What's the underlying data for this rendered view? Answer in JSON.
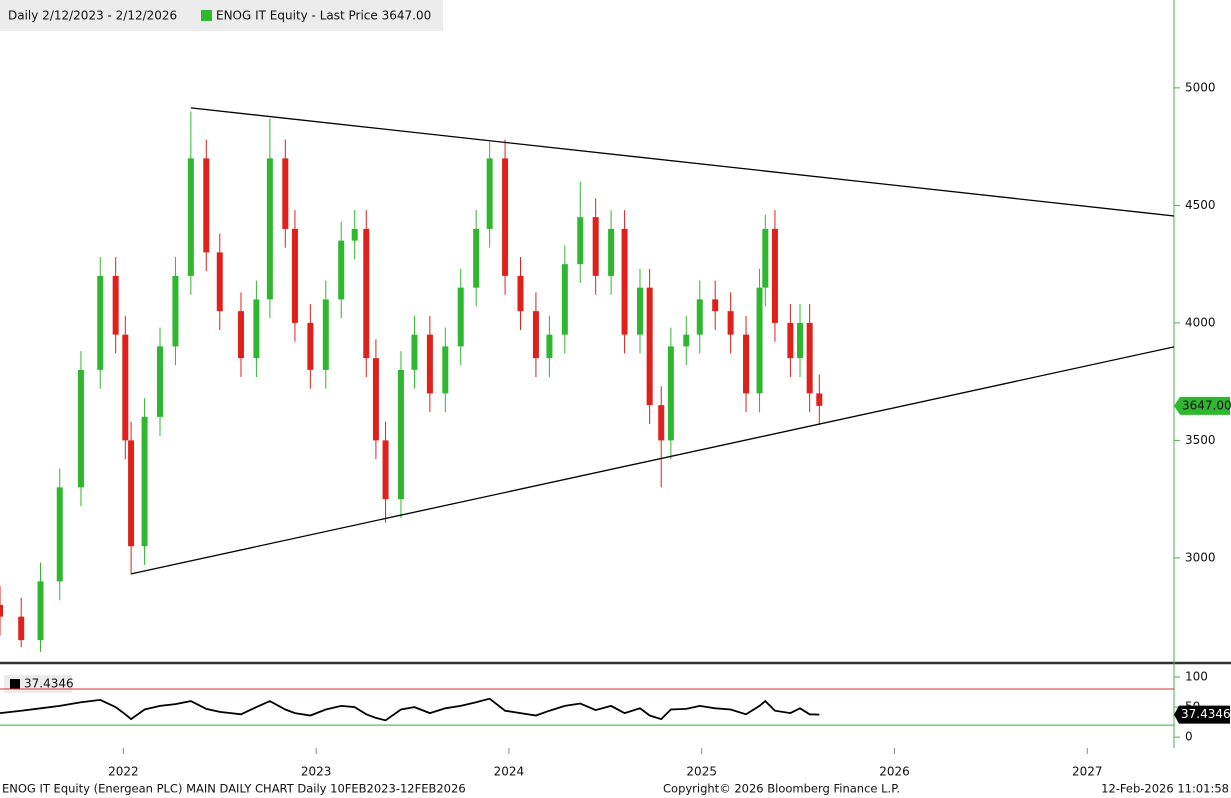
{
  "chart_data": [
    {
      "type": "candlestick",
      "title": "Daily 2/12/2023 - 2/12/2026",
      "x": [
        2021.36,
        2021.47,
        2021.57,
        2021.67,
        2021.78,
        2021.88,
        2021.96,
        2022.01,
        2022.04,
        2022.11,
        2022.19,
        2022.27,
        2022.35,
        2022.43,
        2022.5,
        2022.61,
        2022.69,
        2022.76,
        2022.84,
        2022.89,
        2022.97,
        2023.05,
        2023.13,
        2023.2,
        2023.26,
        2023.31,
        2023.36,
        2023.44,
        2023.51,
        2023.59,
        2023.67,
        2023.75,
        2023.83,
        2023.9,
        2023.98,
        2024.06,
        2024.14,
        2024.21,
        2024.29,
        2024.37,
        2024.45,
        2024.53,
        2024.6,
        2024.68,
        2024.73,
        2024.79,
        2024.84,
        2024.92,
        2024.99,
        2025.07,
        2025.15,
        2025.23,
        2025.3,
        2025.33,
        2025.38,
        2025.46,
        2025.51,
        2025.56,
        2025.61
      ],
      "series": [
        {
          "name": "ENOG IT Equity - Last Price 3647.00",
          "color": "#2fb82f",
          "down_color": "#e0201b",
          "open": [
            2800,
            2750,
            2650,
            2900,
            3300,
            3800,
            4200,
            3950,
            3500,
            3050,
            3600,
            3900,
            4200,
            4700,
            4300,
            4050,
            3850,
            4100,
            4700,
            4400,
            4000,
            3800,
            4100,
            4350,
            4400,
            3850,
            3500,
            3250,
            3800,
            3950,
            3700,
            3900,
            4150,
            4400,
            4700,
            4200,
            4050,
            3850,
            3950,
            4250,
            4450,
            4200,
            4400,
            3950,
            4150,
            3650,
            3500,
            3900,
            3950,
            4100,
            4050,
            3950,
            3700,
            4150,
            4400,
            4000,
            3850,
            4000,
            3700
          ],
          "high": [
            2880,
            2830,
            2980,
            3380,
            3880,
            4280,
            4280,
            4030,
            3580,
            3680,
            3980,
            4280,
            4900,
            4780,
            4380,
            4130,
            4180,
            4870,
            4780,
            4480,
            4080,
            4180,
            4430,
            4480,
            4480,
            3930,
            3580,
            3880,
            4030,
            4030,
            3980,
            4230,
            4480,
            4770,
            4780,
            4280,
            4130,
            4030,
            4330,
            4600,
            4530,
            4480,
            4480,
            4230,
            4230,
            3730,
            3980,
            4030,
            4180,
            4180,
            4130,
            4030,
            4230,
            4460,
            4480,
            4080,
            4080,
            4080,
            3780
          ],
          "low": [
            2670,
            2620,
            2600,
            2820,
            3220,
            3720,
            3870,
            3420,
            2930,
            2970,
            3520,
            3820,
            4120,
            4220,
            3970,
            3770,
            3770,
            4020,
            4320,
            3920,
            3720,
            3720,
            4020,
            4270,
            3770,
            3420,
            3150,
            3170,
            3720,
            3620,
            3620,
            3820,
            4070,
            4320,
            4120,
            3970,
            3770,
            3770,
            3870,
            4170,
            4120,
            4120,
            3870,
            3870,
            3570,
            3300,
            3420,
            3820,
            3870,
            3970,
            3870,
            3620,
            3620,
            4070,
            3920,
            3770,
            3770,
            3620,
            3567
          ],
          "close": [
            2750,
            2650,
            2900,
            3300,
            3800,
            4200,
            3950,
            3500,
            3050,
            3600,
            3900,
            4200,
            4700,
            4300,
            4050,
            3850,
            4100,
            4700,
            4400,
            4000,
            3800,
            4100,
            4350,
            4400,
            3850,
            3500,
            3250,
            3800,
            3950,
            3700,
            3900,
            4150,
            4400,
            4700,
            4200,
            4050,
            3850,
            3950,
            4250,
            4450,
            4200,
            4400,
            3950,
            4150,
            3650,
            3500,
            3900,
            3950,
            4100,
            4050,
            3950,
            3700,
            4150,
            4400,
            4000,
            3850,
            4000,
            3700,
            3647
          ]
        }
      ],
      "last_value": {
        "value": 3647,
        "label": "3647.00"
      },
      "trendlines": [
        {
          "x": [
            2022.35,
            2027.45
          ],
          "y": [
            4915,
            4455
          ],
          "color": "#000000"
        },
        {
          "x": [
            2022.04,
            2027.45
          ],
          "y": [
            2932,
            3898
          ],
          "color": "#000000"
        }
      ],
      "xlim": [
        2021.36,
        2027.45
      ],
      "ylim": [
        2557,
        5374
      ],
      "xticks": [
        2022,
        2023,
        2024,
        2025,
        2026,
        2027
      ],
      "yticks": [
        3000,
        3500,
        4000,
        4500,
        5000
      ]
    },
    {
      "type": "line",
      "color": "#000000",
      "values": [
        40,
        44,
        48,
        52,
        58,
        62,
        50,
        38,
        30,
        46,
        52,
        55,
        60,
        47,
        42,
        38,
        50,
        60,
        46,
        40,
        36,
        46,
        52,
        50,
        38,
        32,
        28,
        46,
        50,
        40,
        48,
        52,
        58,
        64,
        44,
        40,
        36,
        44,
        52,
        56,
        45,
        52,
        40,
        48,
        36,
        30,
        46,
        47,
        52,
        48,
        46,
        38,
        52,
        60,
        44,
        40,
        48,
        38,
        37.4346
      ],
      "reference_lines": [
        {
          "value": 80,
          "color": "#e03030"
        },
        {
          "value": 20,
          "color": "#30b030"
        }
      ],
      "ylim": [
        -18,
        120
      ],
      "yticks": [
        0,
        50,
        100
      ]
    }
  ],
  "footer": {
    "left": "ENOG IT Equity (Energean PLC) MAIN DAILY CHART Daily 10FEB2023-12FEB2026",
    "center": "Copyright© 2026 Bloomberg Finance L.P.",
    "right": "12-Feb-2026 11:01:58"
  }
}
